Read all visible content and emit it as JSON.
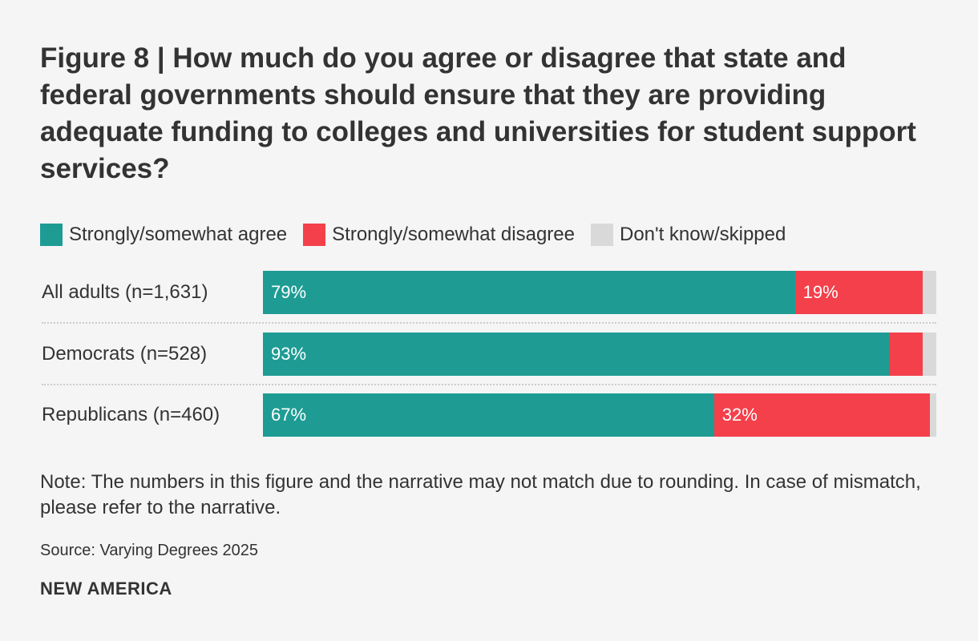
{
  "figure": {
    "title": "Figure 8 | How much do you agree or disagree that state and federal governments should ensure that they are providing adequate funding to colleges and universities for student support services?",
    "note": "Note: The numbers in this figure and the narrative may not match due to rounding. In case of mismatch, please refer to the narrative.",
    "source": "Source: Varying Degrees 2025",
    "brand": "NEW AMERICA"
  },
  "chart_data": {
    "type": "bar",
    "orientation": "horizontal",
    "stacked": true,
    "legend_position": "top-left",
    "grid": false,
    "xlim": [
      0,
      100
    ],
    "categories": [
      "All adults (n=1,631)",
      "Democrats (n=528)",
      "Republicans (n=460)"
    ],
    "series": [
      {
        "name": "Strongly/somewhat agree",
        "color": "#1e9c94",
        "values": [
          79,
          93,
          67
        ],
        "labels": [
          "79%",
          "93%",
          "67%"
        ]
      },
      {
        "name": "Strongly/somewhat disagree",
        "color": "#f4404b",
        "values": [
          19,
          5,
          32
        ],
        "labels": [
          "19%",
          "",
          "32%"
        ]
      },
      {
        "name": "Don't know/skipped",
        "color": "#d9d9d9",
        "values": [
          2,
          2,
          1
        ],
        "labels": [
          "",
          "",
          ""
        ]
      }
    ]
  }
}
